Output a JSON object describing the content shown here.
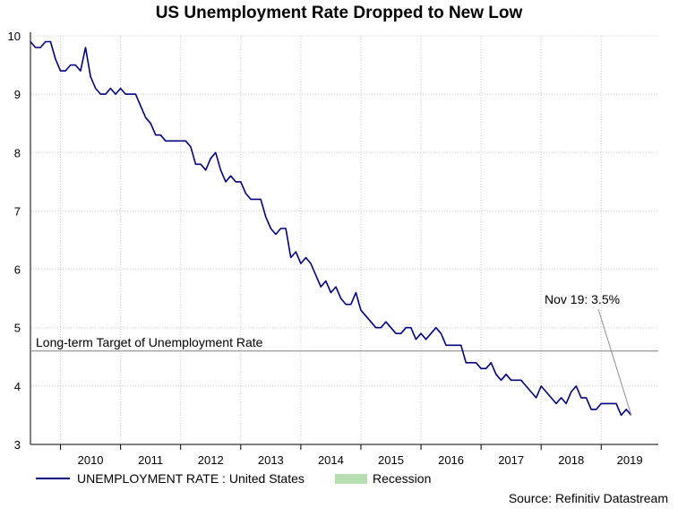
{
  "chart_data": {
    "type": "line",
    "title": "US Unemployment Rate Dropped to New Low",
    "xlabel": "",
    "ylabel": "",
    "ylim": [
      3,
      10
    ],
    "xlim": [
      2009.5,
      2019.95
    ],
    "yticks": [
      3,
      4,
      5,
      6,
      7,
      8,
      9,
      10
    ],
    "year_labels": [
      "2010",
      "2011",
      "2012",
      "2013",
      "2014",
      "2015",
      "2016",
      "2017",
      "2018",
      "2019"
    ],
    "grid": "horizontal+vertical dotted",
    "series": [
      {
        "name": "UNEMPLOYMENT RATE : United States",
        "color": "#000080",
        "start": "2009-07",
        "frequency": "monthly",
        "values": [
          9.9,
          9.8,
          9.8,
          9.9,
          9.9,
          9.6,
          9.4,
          9.4,
          9.5,
          9.5,
          9.4,
          9.8,
          9.3,
          9.1,
          9.0,
          9.0,
          9.1,
          9.0,
          9.1,
          9.0,
          9.0,
          9.0,
          8.8,
          8.6,
          8.5,
          8.3,
          8.3,
          8.2,
          8.2,
          8.2,
          8.2,
          8.2,
          8.1,
          7.8,
          7.8,
          7.7,
          7.9,
          8.0,
          7.7,
          7.5,
          7.6,
          7.5,
          7.5,
          7.3,
          7.2,
          7.2,
          7.2,
          6.9,
          6.7,
          6.6,
          6.7,
          6.7,
          6.2,
          6.3,
          6.1,
          6.2,
          6.1,
          5.9,
          5.7,
          5.8,
          5.6,
          5.7,
          5.5,
          5.4,
          5.4,
          5.6,
          5.3,
          5.2,
          5.1,
          5.0,
          5.0,
          5.1,
          5.0,
          4.9,
          4.9,
          5.0,
          5.0,
          4.8,
          4.9,
          4.8,
          4.9,
          5.0,
          4.9,
          4.7,
          4.7,
          4.7,
          4.7,
          4.4,
          4.4,
          4.4,
          4.3,
          4.3,
          4.4,
          4.2,
          4.1,
          4.2,
          4.1,
          4.1,
          4.1,
          4.0,
          3.9,
          3.8,
          4.0,
          3.9,
          3.8,
          3.7,
          3.8,
          3.7,
          3.9,
          4.0,
          3.8,
          3.8,
          3.6,
          3.6,
          3.7,
          3.7,
          3.7,
          3.7,
          3.5,
          3.6,
          3.5
        ]
      }
    ],
    "reference_line": {
      "label": "Long-term Target of Unemployment Rate",
      "value": 4.6
    },
    "annotation": {
      "text": "Nov 19: 3.5%",
      "target_value": 3.5
    },
    "legend": [
      {
        "label": "UNEMPLOYMENT RATE : United States",
        "kind": "line",
        "color": "#000080"
      },
      {
        "label": "Recession",
        "kind": "box",
        "color": "#b7ddb0"
      }
    ],
    "source": "Source: Refinitiv Datastream"
  }
}
